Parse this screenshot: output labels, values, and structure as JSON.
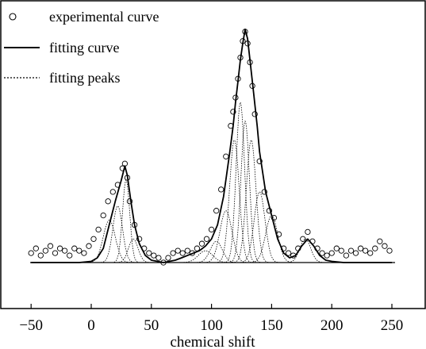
{
  "chart_data": {
    "type": "line",
    "title": "",
    "xlabel": "chemical shift",
    "ylabel": "",
    "xlim": [
      -60,
      260
    ],
    "ylim": [
      0,
      1.05
    ],
    "xticks": [
      -50,
      0,
      50,
      100,
      150,
      200,
      250
    ],
    "xtick_labels": [
      "−50",
      "0",
      "50",
      "100",
      "150",
      "200",
      "250"
    ],
    "grid": false,
    "legend_position": "top-left",
    "series": [
      {
        "name": "experimental curve",
        "marker": "open-circle",
        "x": [
          -50,
          -46,
          -42,
          -38,
          -34,
          -30,
          -26,
          -22,
          -18,
          -14,
          -10,
          -6,
          -2,
          2,
          6,
          10,
          14,
          18,
          22,
          26,
          28,
          30,
          32,
          36,
          40,
          44,
          48,
          52,
          56,
          60,
          64,
          68,
          72,
          76,
          80,
          84,
          88,
          92,
          96,
          100,
          104,
          108,
          112,
          116,
          118,
          120,
          122,
          124,
          126,
          128,
          130,
          132,
          134,
          136,
          140,
          144,
          148,
          152,
          156,
          160,
          164,
          168,
          172,
          176,
          180,
          184,
          188,
          192,
          196,
          200,
          204,
          208,
          212,
          216,
          220,
          224,
          228,
          232,
          236,
          240,
          244,
          248
        ],
        "values": [
          0.04,
          0.06,
          0.03,
          0.05,
          0.07,
          0.04,
          0.06,
          0.05,
          0.03,
          0.06,
          0.05,
          0.04,
          0.07,
          0.1,
          0.14,
          0.2,
          0.26,
          0.3,
          0.33,
          0.4,
          0.42,
          0.36,
          0.26,
          0.16,
          0.1,
          0.06,
          0.04,
          0.03,
          0.02,
          0.0,
          0.02,
          0.04,
          0.05,
          0.04,
          0.05,
          0.04,
          0.06,
          0.08,
          0.1,
          0.14,
          0.22,
          0.31,
          0.45,
          0.58,
          0.64,
          0.7,
          0.78,
          0.87,
          0.94,
          0.98,
          0.93,
          0.85,
          0.75,
          0.63,
          0.43,
          0.3,
          0.22,
          0.19,
          0.12,
          0.06,
          0.04,
          0.03,
          0.06,
          0.1,
          0.13,
          0.09,
          0.06,
          0.04,
          0.03,
          0.04,
          0.06,
          0.05,
          0.03,
          0.05,
          0.04,
          0.06,
          0.05,
          0.04,
          0.06,
          0.09,
          0.07,
          0.05
        ]
      },
      {
        "name": "fitting curve",
        "line_style": "solid",
        "x": [
          -50,
          -40,
          -30,
          -20,
          -10,
          0,
          5,
          10,
          15,
          20,
          25,
          28,
          30,
          33,
          36,
          40,
          45,
          50,
          55,
          60,
          65,
          70,
          75,
          80,
          85,
          90,
          95,
          100,
          105,
          110,
          115,
          118,
          120,
          122,
          124,
          126,
          128,
          130,
          132,
          135,
          138,
          140,
          145,
          150,
          155,
          160,
          165,
          170,
          175,
          180,
          185,
          190,
          195,
          200,
          210,
          220,
          230,
          240,
          250
        ],
        "values": [
          0.0,
          0.0,
          0.0,
          0.0,
          0.0,
          0.005,
          0.02,
          0.06,
          0.16,
          0.26,
          0.35,
          0.41,
          0.37,
          0.26,
          0.16,
          0.08,
          0.03,
          0.01,
          0.005,
          0.0,
          0.005,
          0.01,
          0.02,
          0.03,
          0.04,
          0.05,
          0.07,
          0.1,
          0.16,
          0.28,
          0.46,
          0.58,
          0.68,
          0.77,
          0.86,
          0.93,
          0.99,
          0.95,
          0.86,
          0.72,
          0.58,
          0.47,
          0.3,
          0.2,
          0.1,
          0.04,
          0.02,
          0.03,
          0.07,
          0.1,
          0.07,
          0.03,
          0.01,
          0.005,
          0.0,
          0.0,
          0.0,
          0.0,
          0.0
        ]
      },
      {
        "name": "fitting peaks",
        "line_style": "dotted",
        "peaks": [
          {
            "center": 15,
            "height": 0.18,
            "width": 5
          },
          {
            "center": 22,
            "height": 0.24,
            "width": 4
          },
          {
            "center": 29,
            "height": 0.35,
            "width": 3
          },
          {
            "center": 35,
            "height": 0.1,
            "width": 4
          },
          {
            "center": 95,
            "height": 0.05,
            "width": 6
          },
          {
            "center": 104,
            "height": 0.09,
            "width": 5
          },
          {
            "center": 112,
            "height": 0.22,
            "width": 5
          },
          {
            "center": 119,
            "height": 0.52,
            "width": 4
          },
          {
            "center": 124,
            "height": 0.68,
            "width": 3.5
          },
          {
            "center": 128,
            "height": 0.6,
            "width": 3.5
          },
          {
            "center": 133,
            "height": 0.52,
            "width": 4
          },
          {
            "center": 140,
            "height": 0.3,
            "width": 4.5
          },
          {
            "center": 150,
            "height": 0.2,
            "width": 5
          },
          {
            "center": 178,
            "height": 0.1,
            "width": 4.5
          }
        ]
      }
    ],
    "legend": [
      {
        "label": "experimental curve",
        "symbol": "circle"
      },
      {
        "label": "fitting curve",
        "symbol": "solid-line"
      },
      {
        "label": "fitting peaks",
        "symbol": "dotted-line"
      }
    ]
  }
}
